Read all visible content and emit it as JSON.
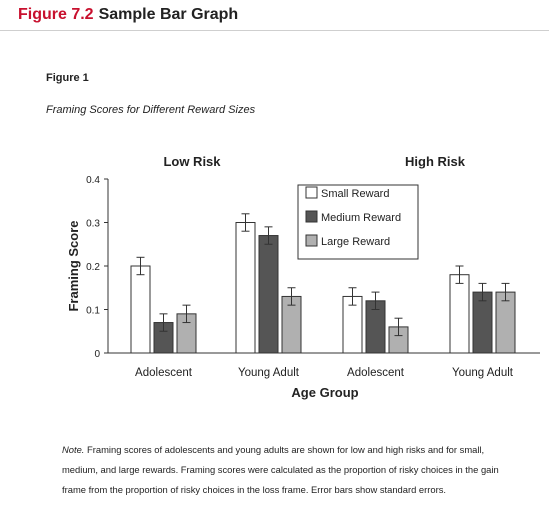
{
  "header": {
    "figure_number": "Figure 7.2",
    "title": "Sample Bar Graph"
  },
  "figure": {
    "label": "Figure 1",
    "caption": "Framing Scores for Different Reward Sizes",
    "note_label": "Note.",
    "note_text": "Framing scores of adolescents and young adults are shown for low and high risks and for small, medium, and large rewards. Framing scores were calculated as the proportion of risky choices in the gain frame from the proportion of risky choices in the loss frame. Error bars show standard errors."
  },
  "chart_data": {
    "type": "bar",
    "title": "",
    "xlabel": "Age Group",
    "ylabel": "Framing Score",
    "ylim": [
      0,
      0.4
    ],
    "yticks": [
      "0",
      "0.1",
      "0.2",
      "0.3",
      "0.4"
    ],
    "group_labels": [
      "Low Risk",
      "High Risk"
    ],
    "categories": [
      "Adolescent",
      "Young Adult",
      "Adolescent",
      "Young Adult"
    ],
    "legend_position": "top-center",
    "grid": false,
    "series": [
      {
        "name": "Small Reward",
        "color": "#ffffff",
        "values": [
          0.2,
          0.3,
          0.13,
          0.18
        ],
        "errors": [
          0.02,
          0.02,
          0.02,
          0.02
        ]
      },
      {
        "name": "Medium Reward",
        "color": "#555555",
        "values": [
          0.07,
          0.27,
          0.12,
          0.14
        ],
        "errors": [
          0.02,
          0.02,
          0.02,
          0.02
        ]
      },
      {
        "name": "Large Reward",
        "color": "#b0b0b0",
        "values": [
          0.09,
          0.13,
          0.06,
          0.14
        ],
        "errors": [
          0.02,
          0.02,
          0.02,
          0.02
        ]
      }
    ]
  }
}
